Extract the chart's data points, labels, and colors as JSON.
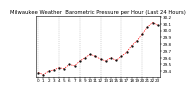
{
  "title": "Milwaukee Weather  Barometric Pressure per Hour (Last 24 Hours)",
  "hours": [
    0,
    1,
    2,
    3,
    4,
    5,
    6,
    7,
    8,
    9,
    10,
    11,
    12,
    13,
    14,
    15,
    16,
    17,
    18,
    19,
    20,
    21,
    22,
    23
  ],
  "pressure": [
    29.38,
    29.35,
    29.4,
    29.42,
    29.45,
    29.44,
    29.5,
    29.48,
    29.55,
    29.6,
    29.65,
    29.62,
    29.58,
    29.55,
    29.6,
    29.56,
    29.62,
    29.68,
    29.78,
    29.85,
    29.95,
    30.05,
    30.12,
    30.08
  ],
  "line_color": "#ff0000",
  "marker_color": "#000000",
  "grid_color": "#aaaaaa",
  "bg_color": "#ffffff",
  "title_color": "#000000",
  "ylim_min": 29.32,
  "ylim_max": 30.22,
  "title_fontsize": 3.8,
  "tick_fontsize": 3.0,
  "ytick_labels": [
    "29.4",
    "29.5",
    "29.6",
    "29.7",
    "29.8",
    "29.9",
    "30.0",
    "30.1",
    "30.2"
  ],
  "yticks": [
    29.4,
    29.5,
    29.6,
    29.7,
    29.8,
    29.9,
    30.0,
    30.1,
    30.2
  ],
  "x_tick_labels": [
    "0",
    "1",
    "2",
    "3",
    "4",
    "5",
    "6",
    "7",
    "8",
    "9",
    "10",
    "11",
    "12",
    "13",
    "14",
    "15",
    "16",
    "17",
    "18",
    "19",
    "20",
    "21",
    "22",
    "23"
  ],
  "vgrid_positions": [
    0,
    4,
    8,
    12,
    16,
    20
  ]
}
